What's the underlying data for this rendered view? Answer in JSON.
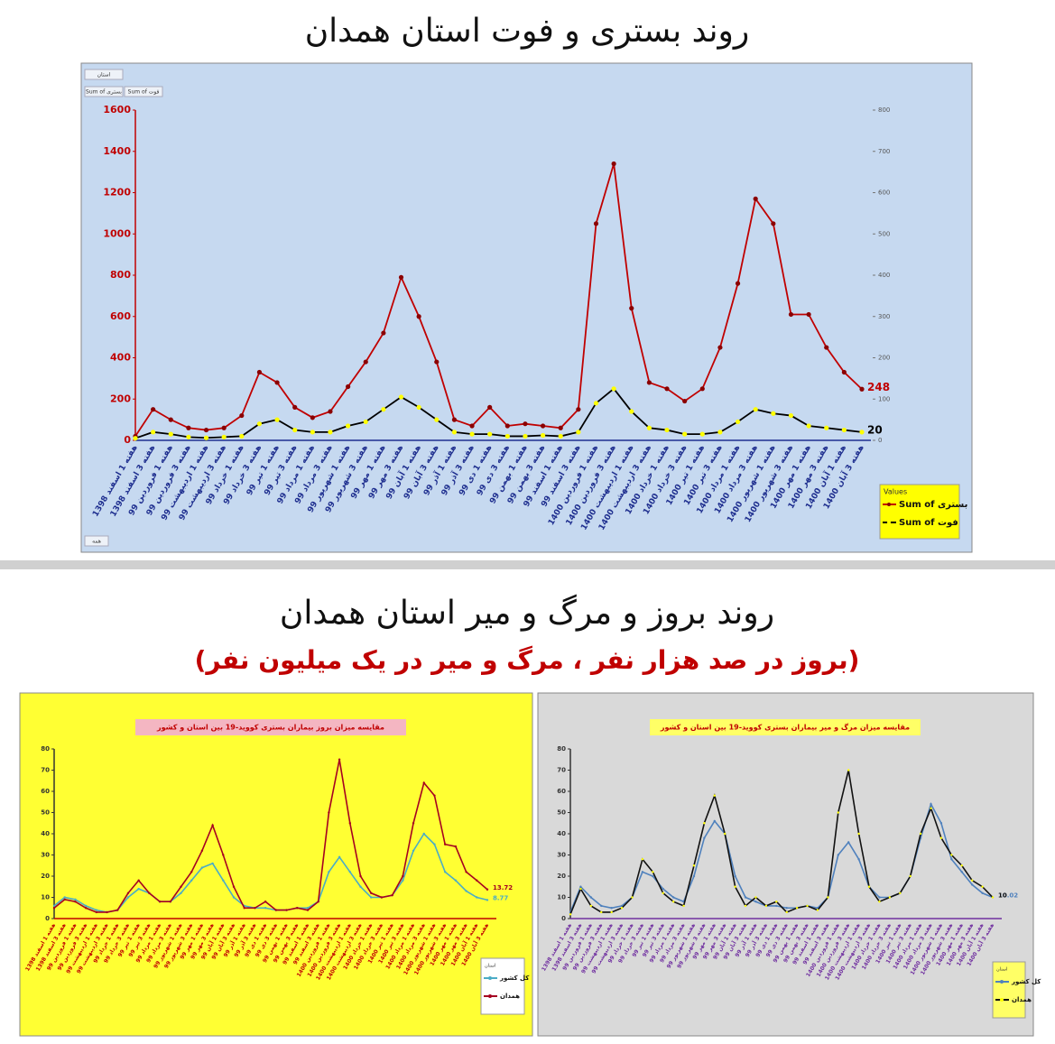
{
  "page": {
    "section_title": "روند بروز و مرگ و میر استان همدان",
    "section_subtitle": "(بروز در صد هزار نفر ، مرگ و میر در یک میلیون نفر)"
  },
  "chart_data": [
    {
      "type": "line",
      "title": "روند بستری و فوت استان همدان",
      "background": "#c6d9f0",
      "ytick_color": "#c00000",
      "xtick_color": "#1f2f8f",
      "field_buttons": [
        "استان",
        "Sum of بستری",
        "Sum of فوت"
      ],
      "filter_button": "همه",
      "legend_title": "Values",
      "legend_color": "#ffff00",
      "categories": [
        "هفته 1 اسفند 1398",
        "هفته 3 اسفند 1398",
        "هفته 1 فروردین 99",
        "هفته 3 فروردین 99",
        "هفته 1 اردیبهشت 99",
        "هفته 3 اردیبهشت 99",
        "هفته 1 خرداد 99",
        "هفته 3 خرداد 99",
        "هفته 1 تیر 99",
        "هفته 3 تیر 99",
        "هفته 1 مرداد 99",
        "هفته 3 مرداد 99",
        "هفته 1 شهریور 99",
        "هفته 3 شهریور 99",
        "هفته 1 مهر 99",
        "هفته 3 مهر 99",
        "هفته 1 آبان 99",
        "هفته 3 آبان 99",
        "هفته 1 آذر 99",
        "هفته 3 آذر 99",
        "هفته 1 دی 99",
        "هفته 3 دی 99",
        "هفته 1 بهمن 99",
        "هفته 3 بهمن 99",
        "هفته 1 اسفند 99",
        "هفته 3 اسفند 99",
        "هفته 1 فروردین 1400",
        "هفته 3 فروردین 1400",
        "هفته 1 اردیبهشت 1400",
        "هفته 3 اردیبهشت 1400",
        "هفته 1 خرداد 1400",
        "هفته 3 خرداد 1400",
        "هفته 1 تیر 1400",
        "هفته 3 تیر 1400",
        "هفته 1 مرداد 1400",
        "هفته 3 مرداد 1400",
        "هفته 1 شهریور 1400",
        "هفته 3 شهریور 1400",
        "هفته 1 مهر 1400",
        "هفته 3 مهر 1400",
        "هفته 1 آبان 1400",
        "هفته 3 آبان 1400"
      ],
      "ylim": [
        0,
        1600
      ],
      "yticks": [
        0,
        200,
        400,
        600,
        800,
        1000,
        1200,
        1400,
        1600
      ],
      "y2lim": [
        0,
        800
      ],
      "y2ticks": [
        0,
        100,
        200,
        300,
        400,
        500,
        600,
        700,
        800
      ],
      "series": [
        {
          "name": "Sum of بستری",
          "color": "#c00000",
          "marker_color": "#8b0000",
          "values": [
            20,
            150,
            100,
            60,
            50,
            60,
            120,
            330,
            280,
            160,
            110,
            140,
            260,
            380,
            520,
            790,
            600,
            380,
            100,
            70,
            160,
            70,
            80,
            70,
            60,
            150,
            1050,
            1340,
            640,
            280,
            250,
            190,
            250,
            450,
            760,
            1170,
            1050,
            610,
            610,
            450,
            330,
            248
          ]
        },
        {
          "name": "Sum of فوت",
          "axis": "y2",
          "color": "#000000",
          "marker_color": "#ffff00",
          "values": [
            5,
            20,
            15,
            8,
            6,
            8,
            10,
            40,
            50,
            25,
            20,
            20,
            35,
            45,
            75,
            105,
            80,
            50,
            20,
            15,
            15,
            10,
            10,
            12,
            10,
            20,
            90,
            125,
            70,
            30,
            25,
            15,
            15,
            20,
            45,
            75,
            65,
            60,
            35,
            30,
            25,
            20
          ]
        }
      ]
    },
    {
      "type": "line",
      "title": "مقایسه میزان بروز بیماران بستری کووید-19 بین استان و کشور",
      "background": "#ffff33",
      "title_background": "#f4b6c2",
      "ytick_color": "#333333",
      "xtick_color": "#c00000",
      "legend_title": "استان",
      "legend_color": "#ffffff",
      "categories": [
        "هفته 1 اسفند 1398",
        "هفته 3 اسفند 1398",
        "هفته 1 فروردین 99",
        "هفته 3 فروردین 99",
        "هفته 1 اردیبهشت 99",
        "هفته 3 اردیبهشت 99",
        "هفته 1 خرداد 99",
        "هفته 3 خرداد 99",
        "هفته 1 تیر 99",
        "هفته 3 تیر 99",
        "هفته 1 مرداد 99",
        "هفته 3 مرداد 99",
        "هفته 1 شهریور 99",
        "هفته 3 شهریور 99",
        "هفته 1 مهر 99",
        "هفته 3 مهر 99",
        "هفته 1 آبان 99",
        "هفته 3 آبان 99",
        "هفته 1 آذر 99",
        "هفته 3 آذر 99",
        "هفته 1 دی 99",
        "هفته 3 دی 99",
        "هفته 1 بهمن 99",
        "هفته 3 بهمن 99",
        "هفته 1 اسفند 99",
        "هفته 3 اسفند 99",
        "هفته 1 فروردین 1400",
        "هفته 3 فروردین 1400",
        "هفته 1 اردیبهشت 1400",
        "هفته 3 اردیبهشت 1400",
        "هفته 1 خرداد 1400",
        "هفته 3 خرداد 1400",
        "هفته 1 تیر 1400",
        "هفته 3 تیر 1400",
        "هفته 1 مرداد 1400",
        "هفته 3 مرداد 1400",
        "هفته 1 شهریور 1400",
        "هفته 3 شهریور 1400",
        "هفته 1 مهر 1400",
        "هفته 3 مهر 1400",
        "هفته 1 آبان 1400",
        "هفته 3 آبان 1400"
      ],
      "ylim": [
        0,
        80
      ],
      "yticks": [
        0,
        10,
        20,
        30,
        40,
        50,
        60,
        70,
        80
      ],
      "series": [
        {
          "name": "کل کشور",
          "color": "#4bacc6",
          "marker_color": "#4bacc6",
          "values": [
            6,
            10,
            9,
            6,
            4,
            3,
            4,
            10,
            14,
            12,
            8,
            8,
            12,
            18,
            24,
            26,
            18,
            10,
            6,
            5,
            5,
            4,
            4,
            5,
            5,
            8,
            22,
            29,
            22,
            15,
            10,
            10,
            11,
            18,
            32,
            40,
            35,
            22,
            18,
            13,
            10,
            8.77
          ]
        },
        {
          "name": "همدان",
          "color": "#a50021",
          "marker_color": "#a50021",
          "values": [
            5,
            9,
            8,
            5,
            3,
            3,
            4,
            12,
            18,
            12,
            8,
            8,
            15,
            22,
            32,
            44,
            30,
            15,
            5,
            5,
            8,
            4,
            4,
            5,
            4,
            8,
            50,
            75,
            45,
            20,
            12,
            10,
            11,
            20,
            45,
            64,
            58,
            35,
            34,
            22,
            18,
            13.72
          ]
        }
      ]
    },
    {
      "type": "line",
      "title": "مقایسه میزان مرگ و میر بیماران بستری کووید-19 بین استان و کشور",
      "background": "#d9d9d9",
      "title_background": "#ffff66",
      "ytick_color": "#333333",
      "xtick_color": "#7030a0",
      "legend_title": "استان",
      "legend_color": "#ffff66",
      "categories": [
        "هفته 1 اسفند 1398",
        "هفته 3 اسفند 1398",
        "هفته 1 فروردین 99",
        "هفته 3 فروردین 99",
        "هفته 1 اردیبهشت 99",
        "هفته 3 اردیبهشت 99",
        "هفته 1 خرداد 99",
        "هفته 3 خرداد 99",
        "هفته 1 تیر 99",
        "هفته 3 تیر 99",
        "هفته 1 مرداد 99",
        "هفته 3 مرداد 99",
        "هفته 1 شهریور 99",
        "هفته 3 شهریور 99",
        "هفته 1 مهر 99",
        "هفته 3 مهر 99",
        "هفته 1 آبان 99",
        "هفته 3 آبان 99",
        "هفته 1 آذر 99",
        "هفته 3 آذر 99",
        "هفته 1 دی 99",
        "هفته 3 دی 99",
        "هفته 1 بهمن 99",
        "هفته 3 بهمن 99",
        "هفته 1 اسفند 99",
        "هفته 3 اسفند 99",
        "هفته 1 فروردین 1400",
        "هفته 3 فروردین 1400",
        "هفته 1 اردیبهشت 1400",
        "هفته 3 اردیبهشت 1400",
        "هفته 1 خرداد 1400",
        "هفته 3 خرداد 1400",
        "هفته 1 تیر 1400",
        "هفته 3 تیر 1400",
        "هفته 1 مرداد 1400",
        "هفته 3 مرداد 1400",
        "هفته 1 شهریور 1400",
        "هفته 3 شهریور 1400",
        "هفته 1 مهر 1400",
        "هفته 3 مهر 1400",
        "هفته 1 آبان 1400",
        "هفته 3 آبان 1400"
      ],
      "ylim": [
        0,
        80
      ],
      "yticks": [
        0,
        10,
        20,
        30,
        40,
        50,
        60,
        70,
        80
      ],
      "series": [
        {
          "name": "کل کشور",
          "color": "#4f81bd",
          "marker_color": "#4f81bd",
          "values": [
            3,
            15,
            10,
            6,
            5,
            6,
            10,
            22,
            20,
            14,
            10,
            8,
            20,
            38,
            46,
            40,
            20,
            10,
            8,
            6,
            6,
            5,
            5,
            6,
            5,
            10,
            30,
            36,
            28,
            15,
            10,
            10,
            12,
            20,
            38,
            54,
            45,
            28,
            22,
            16,
            12,
            10.02
          ]
        },
        {
          "name": "همدان",
          "color": "#111111",
          "marker_color": "#ffff00",
          "values": [
            2,
            14,
            6,
            3,
            3,
            5,
            10,
            28,
            22,
            12,
            8,
            6,
            25,
            45,
            58,
            40,
            15,
            6,
            10,
            6,
            8,
            3,
            5,
            6,
            4,
            10,
            50,
            70,
            40,
            15,
            8,
            10,
            12,
            20,
            40,
            52,
            38,
            30,
            25,
            18,
            15,
            10
          ]
        }
      ]
    }
  ]
}
